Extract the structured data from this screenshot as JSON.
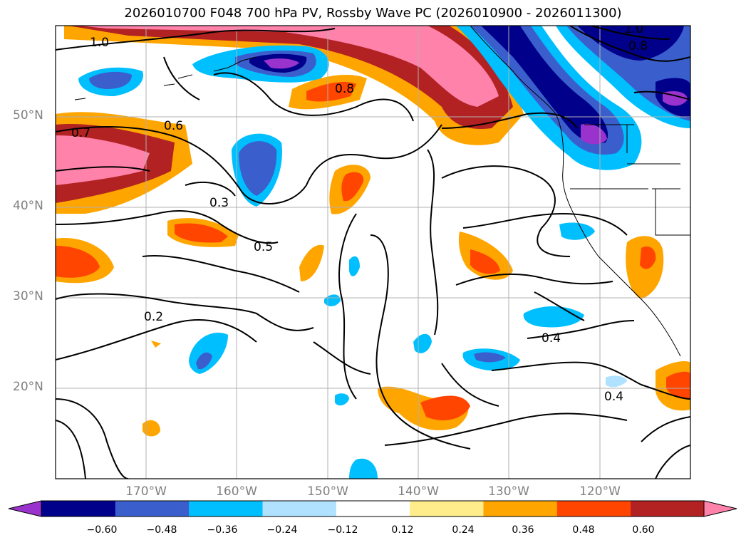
{
  "title": "2026010700 F048 700 hPa PV, Rossby Wave PC (2026010900 - 2026011300)",
  "lat_labels": [
    "50°N",
    "40°N",
    "30°N",
    "20°N"
  ],
  "lon_labels": [
    "170°W",
    "160°W",
    "150°W",
    "140°W",
    "130°W",
    "120°W"
  ],
  "colorbar": {
    "ticks": [
      "−0.60",
      "−0.48",
      "−0.36",
      "−0.24",
      "−0.12",
      "0.12",
      "0.24",
      "0.36",
      "0.48",
      "0.60"
    ],
    "colors": [
      "#9a32cd",
      "#00008b",
      "#3a5fcd",
      "#00bfff",
      "#b0e2ff",
      "#ffffff",
      "#ffec8b",
      "#ffa500",
      "#ff4500",
      "#b22222",
      "#ff82ab"
    ]
  },
  "contour_labels": [
    "1.0",
    "0.7",
    "0.8",
    "0.6",
    "0.5",
    "0.4",
    "0.3",
    "0.2",
    "1.0",
    "0.8",
    "0.4"
  ]
}
